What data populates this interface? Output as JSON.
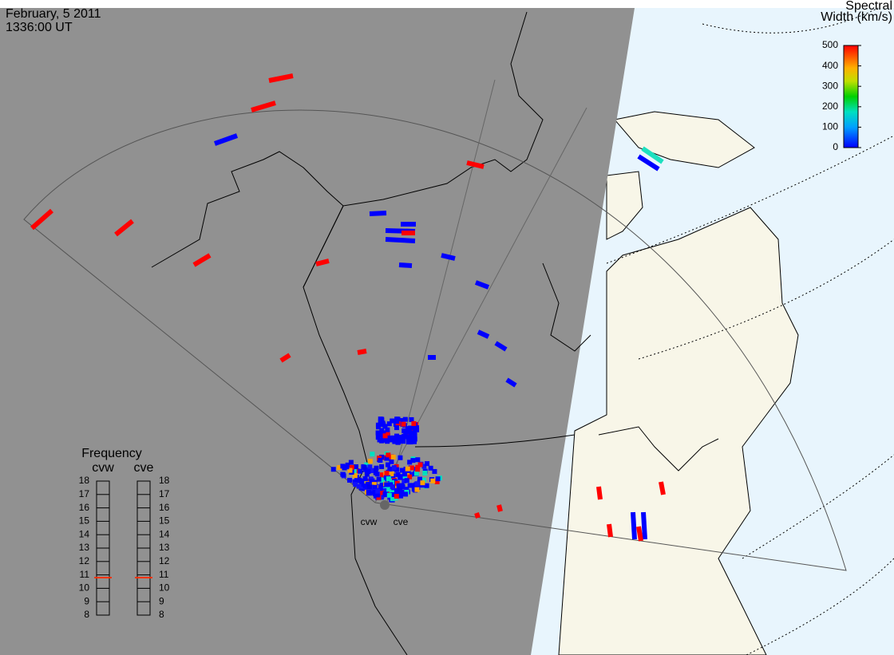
{
  "header": {
    "date": "February, 5 2011",
    "time": "1336:00 UT"
  },
  "radars": [
    "cvw",
    "cve"
  ],
  "colorbar": {
    "title_lines": [
      "Spectral",
      "Width (km/s)"
    ],
    "lim": [
      0,
      500
    ],
    "ticks": [
      0,
      100,
      200,
      300,
      400,
      500
    ]
  },
  "frequency": {
    "title": "Frequency",
    "lim": [
      8,
      18
    ],
    "ticks": [
      8,
      9,
      10,
      11,
      12,
      13,
      14,
      15,
      16,
      17,
      18
    ],
    "radars": [
      {
        "name": "cvw",
        "value": 10.8
      },
      {
        "name": "cve",
        "value": 10.8
      }
    ]
  }
}
